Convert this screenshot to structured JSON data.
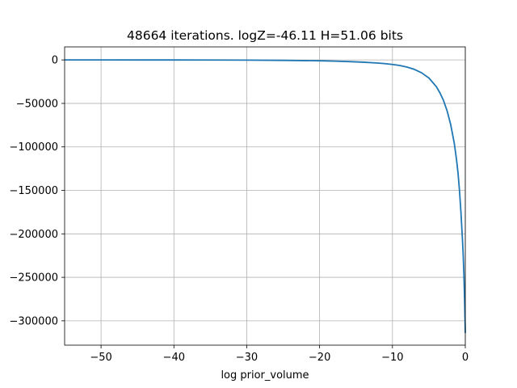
{
  "chart_data": {
    "type": "line",
    "title": "48664 iterations. logZ=-46.11 H=51.06 bits",
    "xlabel": "log prior_volume",
    "ylabel": "",
    "xlim": [
      -55,
      0
    ],
    "ylim": [
      -328000,
      15000
    ],
    "grid": true,
    "x_ticks": [
      -50,
      -40,
      -30,
      -20,
      -10,
      0
    ],
    "x_tick_labels": [
      "−50",
      "−40",
      "−30",
      "−20",
      "−10",
      "0"
    ],
    "y_ticks": [
      0,
      -50000,
      -100000,
      -150000,
      -200000,
      -250000,
      -300000
    ],
    "y_tick_labels": [
      "0",
      "−50000",
      "−100000",
      "−150000",
      "−200000",
      "−250000",
      "−300000"
    ],
    "series": [
      {
        "color": "#1f77b4",
        "x": [
          -55,
          -50,
          -45,
          -40,
          -35,
          -30,
          -25,
          -20,
          -18,
          -16,
          -14,
          -12,
          -11,
          -10,
          -9,
          -8,
          -7,
          -6,
          -5,
          -4,
          -3.5,
          -3,
          -2.5,
          -2,
          -1.5,
          -1.2,
          -1,
          -0.8,
          -0.6,
          -0.4,
          -0.3,
          -0.2,
          -0.1,
          -0.05,
          0
        ],
        "y": [
          -8,
          -15,
          -30,
          -60,
          -120,
          -250,
          -500,
          -1000,
          -1400,
          -1900,
          -2600,
          -3600,
          -4300,
          -5200,
          -6400,
          -8200,
          -10800,
          -14800,
          -20800,
          -30500,
          -37500,
          -46500,
          -58500,
          -74500,
          -96500,
          -115000,
          -130000,
          -150000,
          -175000,
          -205000,
          -222000,
          -245000,
          -275000,
          -295000,
          -314000
        ]
      }
    ]
  }
}
